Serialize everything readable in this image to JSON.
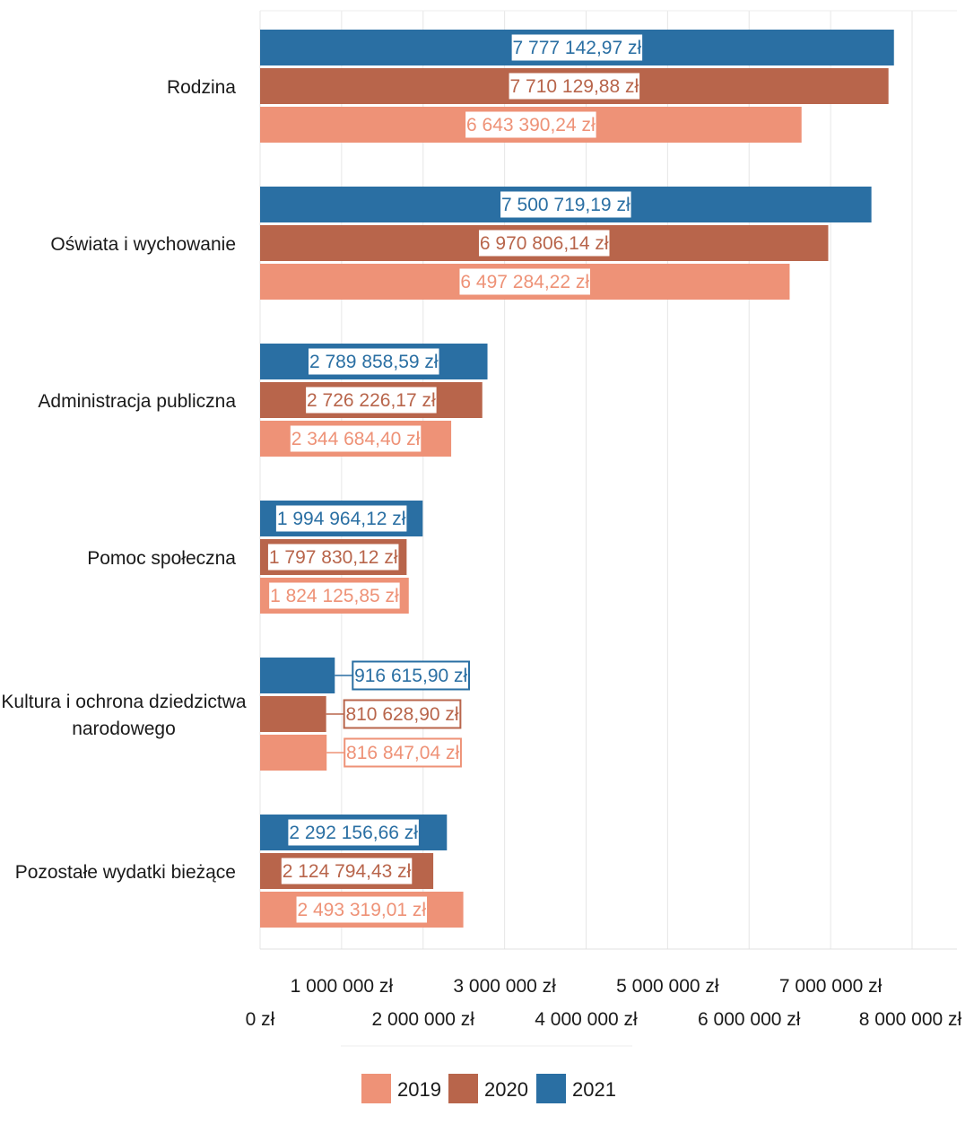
{
  "chart_data": {
    "type": "bar",
    "orientation": "horizontal",
    "categories": [
      [
        "Rodzina"
      ],
      [
        "Oświata i wychowanie"
      ],
      [
        "Administracja publiczna"
      ],
      [
        "Pomoc społeczna"
      ],
      [
        "Kultura i ochrona dziedzictwa",
        "narodowego"
      ],
      [
        "Pozostałe wydatki bieżące"
      ]
    ],
    "series": [
      {
        "name": "2021",
        "color": "#2a6fa3",
        "values": [
          7777142.97,
          7500719.19,
          2789858.59,
          1994964.12,
          916615.9,
          2292156.66
        ],
        "labels": [
          "7 777 142,97 zł",
          "7 500 719,19 zł",
          "2 789 858,59 zł",
          "1 994 964,12 zł",
          "916 615,90 zł",
          "2 292 156,66 zł"
        ]
      },
      {
        "name": "2020",
        "color": "#b8654b",
        "values": [
          7710129.88,
          6970806.14,
          2726226.17,
          1797830.12,
          810628.9,
          2124794.43
        ],
        "labels": [
          "7 710 129,88 zł",
          "6 970 806,14 zł",
          "2 726 226,17 zł",
          "1 797 830,12 zł",
          "810 628,90 zł",
          "2 124 794,43 zł"
        ]
      },
      {
        "name": "2019",
        "color": "#ee9277",
        "values": [
          6643390.24,
          6497284.22,
          2344684.4,
          1824125.85,
          816847.04,
          2493319.01
        ],
        "labels": [
          "6 643 390,24 zł",
          "6 497 284,22 zł",
          "2 344 684,40 zł",
          "1 824 125,85 zł",
          "816 847,04 zł",
          "2 493 319,01 zł"
        ]
      }
    ],
    "xlim": [
      0,
      8000000
    ],
    "x_ticks": [
      {
        "value": 0,
        "label": "0 zł"
      },
      {
        "value": 1000000,
        "label": "1 000 000 zł"
      },
      {
        "value": 2000000,
        "label": "2 000 000 zł"
      },
      {
        "value": 3000000,
        "label": "3 000 000 zł"
      },
      {
        "value": 4000000,
        "label": "4 000 000 zł"
      },
      {
        "value": 5000000,
        "label": "5 000 000 zł"
      },
      {
        "value": 6000000,
        "label": "6 000 000 zł"
      },
      {
        "value": 7000000,
        "label": "7 000 000 zł"
      },
      {
        "value": 8000000,
        "label": "8 000 000 zł"
      }
    ],
    "legend": [
      "2019",
      "2020",
      "2021"
    ],
    "legend_colors": [
      "#ee9277",
      "#b8654b",
      "#2a6fa3"
    ],
    "legend_position": "bottom",
    "grid": true,
    "title": "",
    "xlabel": "",
    "ylabel": ""
  }
}
